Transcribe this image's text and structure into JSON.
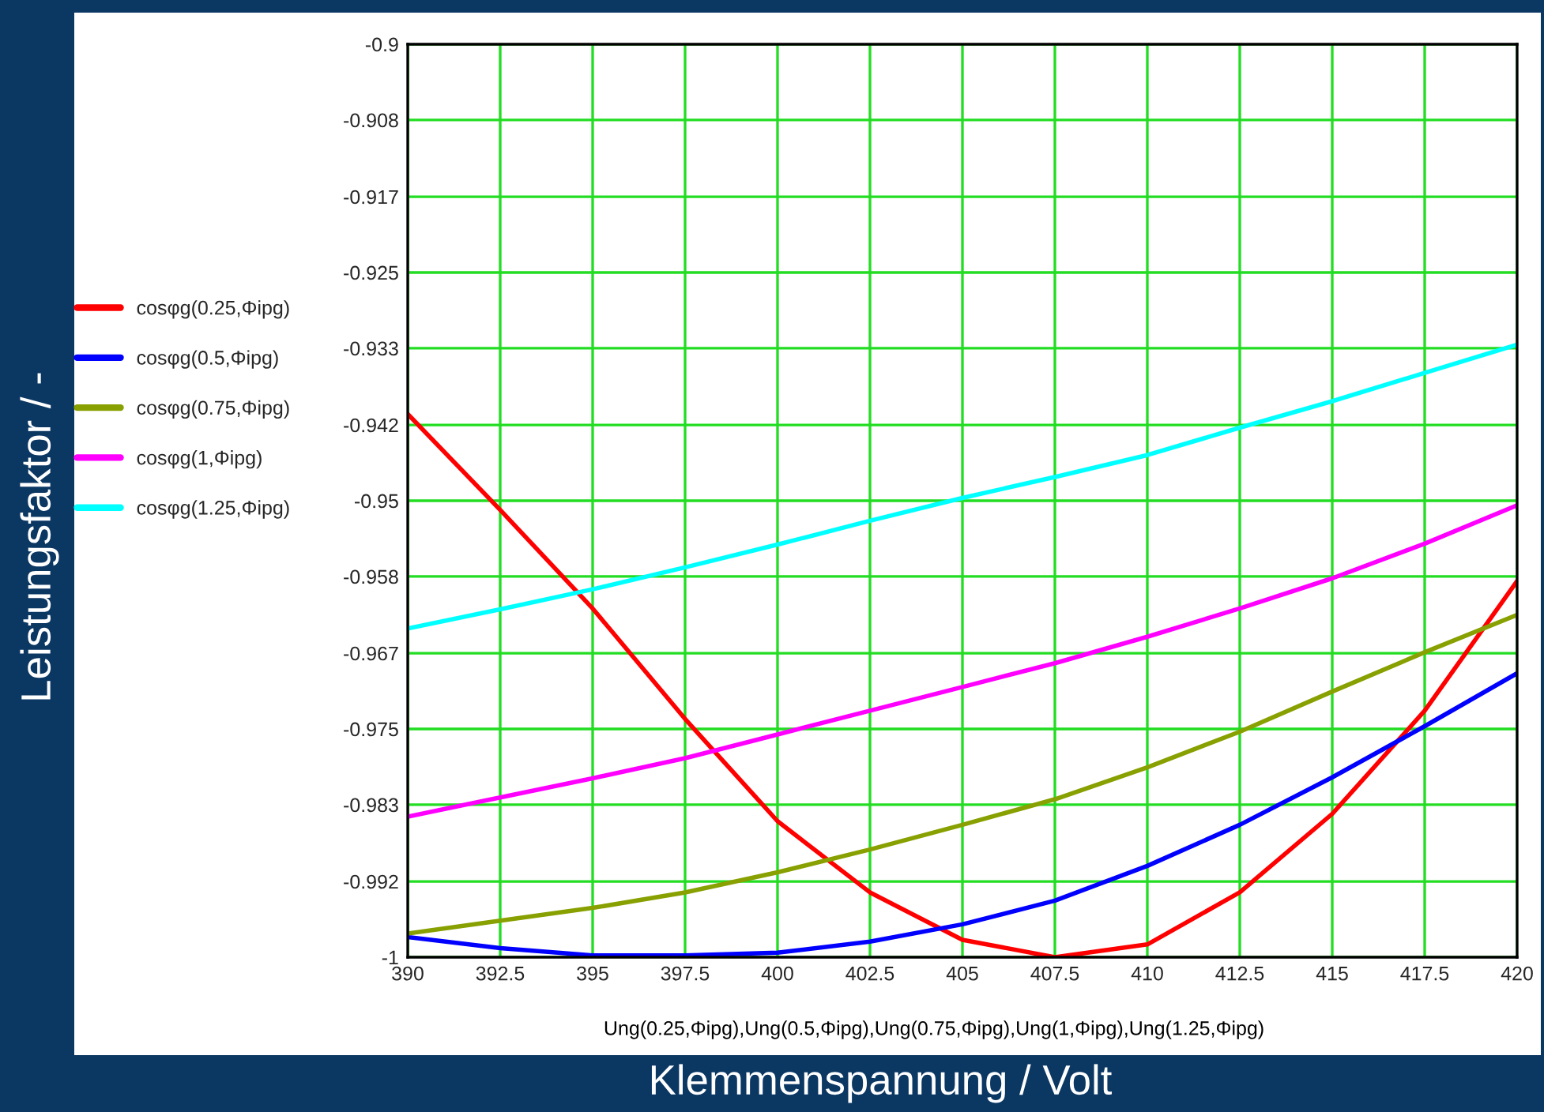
{
  "chart_data": {
    "type": "line",
    "xlabel": "Klemmenspannung / Volt",
    "annotations": [
      "Ung(0.25,Φipg),Ung(0.5,Φipg),Ung(0.75,Φipg),Ung(1,Φipg),Ung(1.25,Φipg)",
      "Leistungsfaktor / -"
    ],
    "x": [
      390,
      392.5,
      395,
      397.5,
      400,
      402.5,
      405,
      407.5,
      410,
      412.5,
      415,
      417.5,
      420
    ],
    "series": [
      {
        "name": "cosφg(0.25,Φipg)",
        "color": "#ff0000",
        "values": [
          -0.9405,
          -0.951,
          -0.9618,
          -0.9739,
          -0.9851,
          -0.9929,
          -0.9981,
          -1.0,
          -0.9986,
          -0.9929,
          -0.9843,
          -0.973,
          -0.9588
        ]
      },
      {
        "name": "cosφg(0.5,Φipg)",
        "color": "#0000ff",
        "values": [
          -0.9978,
          -0.999,
          -0.9998,
          -0.9998,
          -0.9995,
          -0.9983,
          -0.9964,
          -0.9938,
          -0.99,
          -0.9855,
          -0.9803,
          -0.9747,
          -0.9689
        ]
      },
      {
        "name": "cosφg(0.75,Φipg)",
        "color": "#88a000",
        "values": [
          -0.9974,
          -0.996,
          -0.9946,
          -0.9929,
          -0.9907,
          -0.9882,
          -0.9855,
          -0.9827,
          -0.9792,
          -0.9753,
          -0.9709,
          -0.9666,
          -0.9625
        ]
      },
      {
        "name": "cosφg(1,Φipg)",
        "color": "#ff00ff",
        "values": [
          -0.9846,
          -0.9825,
          -0.9804,
          -0.9782,
          -0.9756,
          -0.973,
          -0.9704,
          -0.9678,
          -0.9649,
          -0.9618,
          -0.9585,
          -0.9547,
          -0.9505
        ]
      },
      {
        "name": "cosφg(1.25,Φipg)",
        "color": "#00ffff",
        "values": [
          -0.964,
          -0.9619,
          -0.9597,
          -0.9573,
          -0.9548,
          -0.9522,
          -0.9497,
          -0.9474,
          -0.945,
          -0.942,
          -0.9391,
          -0.936,
          -0.9329
        ]
      }
    ],
    "xlim": [
      390,
      420
    ],
    "xticks": [
      390,
      392.5,
      395,
      397.5,
      400,
      402.5,
      405,
      407.5,
      410,
      412.5,
      415,
      417.5,
      420
    ],
    "ylim": [
      -1,
      -0.9
    ],
    "yticks": [
      {
        "value": -0.9,
        "label": "-0.9"
      },
      {
        "value": -0.9083,
        "label": "-0.908"
      },
      {
        "value": -0.9167,
        "label": "-0.917"
      },
      {
        "value": -0.925,
        "label": "-0.925"
      },
      {
        "value": -0.9333,
        "label": "-0.933"
      },
      {
        "value": -0.9417,
        "label": "-0.942"
      },
      {
        "value": -0.95,
        "label": "-0.95"
      },
      {
        "value": -0.9583,
        "label": "-0.958"
      },
      {
        "value": -0.9667,
        "label": "-0.967"
      },
      {
        "value": -0.975,
        "label": "-0.975"
      },
      {
        "value": -0.9833,
        "label": "-0.983"
      },
      {
        "value": -0.9917,
        "label": "-0.992"
      },
      {
        "value": -1,
        "label": "-1"
      }
    ],
    "grid": true,
    "legend": "left",
    "line_style": "solid",
    "marker": "none"
  }
}
